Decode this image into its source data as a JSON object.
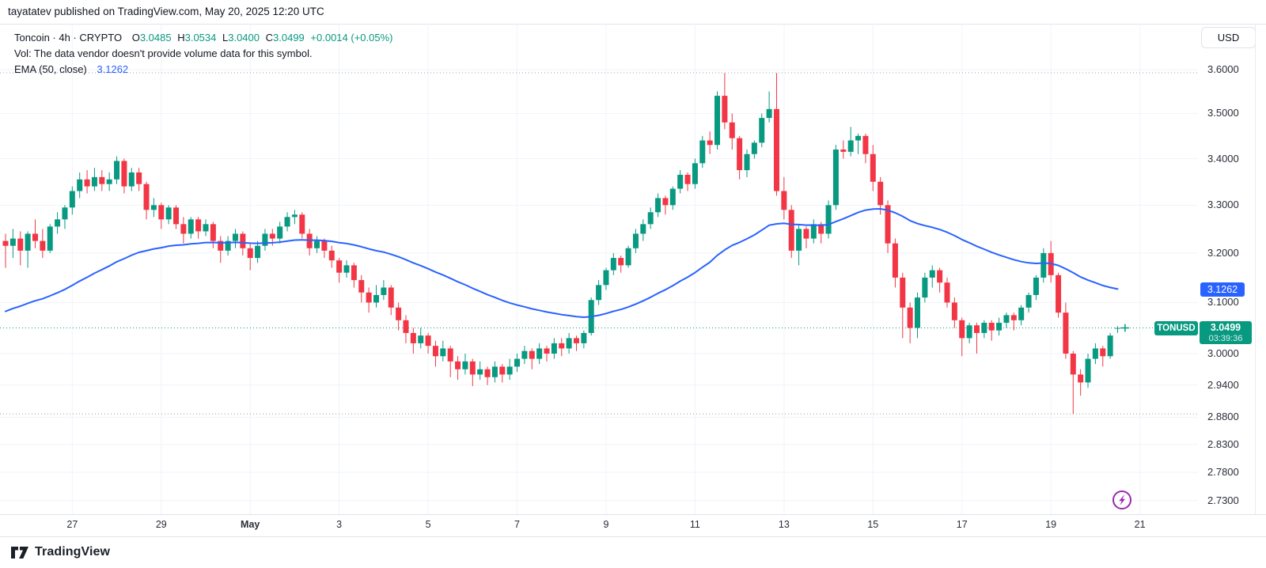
{
  "attribution": "tayatatev published on TradingView.com, May 20, 2025 12:20 UTC",
  "legend": {
    "title": "Toncoin · 4h · CRYPTO",
    "o_label": "O",
    "o_value": "3.0485",
    "h_label": "H",
    "h_value": "3.0534",
    "l_label": "L",
    "l_value": "3.0400",
    "c_label": "C",
    "c_value": "3.0499",
    "change": "+0.0014 (+0.05%)",
    "vol_message": "Vol: The data vendor doesn't provide volume data for this symbol.",
    "ema_label": "EMA (50, close)",
    "ema_value": "3.1262"
  },
  "axis_right": {
    "currency_button": "USD",
    "labels": [
      {
        "text": "3.6000",
        "price": 3.6
      },
      {
        "text": "3.5000",
        "price": 3.5
      },
      {
        "text": "3.4000",
        "price": 3.4
      },
      {
        "text": "3.3000",
        "price": 3.3
      },
      {
        "text": "3.2000",
        "price": 3.2
      },
      {
        "text": "3.1000",
        "price": 3.1
      },
      {
        "text": "3.0000",
        "price": 3.0
      },
      {
        "text": "2.9400",
        "price": 2.94
      },
      {
        "text": "2.8800",
        "price": 2.88
      },
      {
        "text": "2.8300",
        "price": 2.83
      },
      {
        "text": "2.7800",
        "price": 2.78
      },
      {
        "text": "2.7300",
        "price": 2.73
      }
    ],
    "ema_badge": "3.1262",
    "symbol_tag": "TONUSD",
    "price_badge": "3.0499",
    "countdown": "03:39:36"
  },
  "footer": {
    "logo_text": "TradingView"
  },
  "colors": {
    "up": "#089981",
    "down": "#F23645",
    "ema": "#2962FF",
    "grid": "#f0f3fa",
    "range_dotted": "#9b9ea7",
    "text": "#131722"
  },
  "chart_data": {
    "type": "candlestick",
    "symbol": "TONUSD",
    "title": "Toncoin",
    "interval": "4h",
    "exchange": "CRYPTO",
    "scale": "log",
    "ema_period": 50,
    "ema_seed": 3.077,
    "ema_value": 3.1262,
    "last_price": 3.0499,
    "range_high": 3.5926,
    "range_low": 2.886,
    "price_axis": [
      3.6,
      3.5,
      3.4,
      3.3,
      3.2,
      3.1,
      3.0,
      2.94,
      2.88,
      2.83,
      2.78,
      2.73
    ],
    "time_ticks": [
      {
        "i": 9,
        "label": "27"
      },
      {
        "i": 21,
        "label": "29"
      },
      {
        "i": 33,
        "label": "May",
        "bold": true
      },
      {
        "i": 45,
        "label": "3"
      },
      {
        "i": 57,
        "label": "5"
      },
      {
        "i": 69,
        "label": "7"
      },
      {
        "i": 81,
        "label": "9"
      },
      {
        "i": 93,
        "label": "11"
      },
      {
        "i": 105,
        "label": "13"
      },
      {
        "i": 117,
        "label": "15"
      },
      {
        "i": 129,
        "label": "17"
      },
      {
        "i": 141,
        "label": "19"
      },
      {
        "i": 153,
        "label": "21"
      }
    ],
    "candles": [
      [
        3.225,
        3.24,
        3.17,
        3.215
      ],
      [
        3.215,
        3.25,
        3.19,
        3.23
      ],
      [
        3.23,
        3.245,
        3.175,
        3.205
      ],
      [
        3.205,
        3.245,
        3.17,
        3.24
      ],
      [
        3.24,
        3.27,
        3.21,
        3.225
      ],
      [
        3.225,
        3.25,
        3.19,
        3.205
      ],
      [
        3.205,
        3.26,
        3.2,
        3.255
      ],
      [
        3.255,
        3.285,
        3.24,
        3.27
      ],
      [
        3.27,
        3.3,
        3.25,
        3.295
      ],
      [
        3.295,
        3.34,
        3.28,
        3.33
      ],
      [
        3.33,
        3.37,
        3.315,
        3.355
      ],
      [
        3.355,
        3.375,
        3.325,
        3.34
      ],
      [
        3.34,
        3.38,
        3.33,
        3.36
      ],
      [
        3.36,
        3.375,
        3.33,
        3.345
      ],
      [
        3.345,
        3.37,
        3.33,
        3.355
      ],
      [
        3.355,
        3.405,
        3.345,
        3.395
      ],
      [
        3.395,
        3.4,
        3.325,
        3.34
      ],
      [
        3.34,
        3.38,
        3.33,
        3.37
      ],
      [
        3.37,
        3.38,
        3.33,
        3.345
      ],
      [
        3.345,
        3.35,
        3.27,
        3.29
      ],
      [
        3.29,
        3.315,
        3.275,
        3.3
      ],
      [
        3.3,
        3.305,
        3.25,
        3.27
      ],
      [
        3.27,
        3.3,
        3.26,
        3.295
      ],
      [
        3.295,
        3.3,
        3.25,
        3.26
      ],
      [
        3.26,
        3.275,
        3.22,
        3.24
      ],
      [
        3.24,
        3.275,
        3.23,
        3.27
      ],
      [
        3.27,
        3.275,
        3.23,
        3.245
      ],
      [
        3.245,
        3.27,
        3.235,
        3.26
      ],
      [
        3.26,
        3.265,
        3.21,
        3.225
      ],
      [
        3.225,
        3.235,
        3.18,
        3.205
      ],
      [
        3.205,
        3.235,
        3.195,
        3.225
      ],
      [
        3.225,
        3.25,
        3.21,
        3.24
      ],
      [
        3.24,
        3.245,
        3.195,
        3.21
      ],
      [
        3.21,
        3.22,
        3.165,
        3.19
      ],
      [
        3.19,
        3.225,
        3.18,
        3.215
      ],
      [
        3.215,
        3.25,
        3.205,
        3.24
      ],
      [
        3.24,
        3.25,
        3.215,
        3.23
      ],
      [
        3.23,
        3.265,
        3.22,
        3.255
      ],
      [
        3.255,
        3.285,
        3.245,
        3.275
      ],
      [
        3.275,
        3.29,
        3.26,
        3.28
      ],
      [
        3.28,
        3.285,
        3.23,
        3.24
      ],
      [
        3.24,
        3.25,
        3.195,
        3.21
      ],
      [
        3.21,
        3.235,
        3.2,
        3.225
      ],
      [
        3.225,
        3.23,
        3.19,
        3.205
      ],
      [
        3.205,
        3.215,
        3.17,
        3.185
      ],
      [
        3.185,
        3.19,
        3.14,
        3.16
      ],
      [
        3.16,
        3.185,
        3.15,
        3.175
      ],
      [
        3.175,
        3.18,
        3.13,
        3.145
      ],
      [
        3.145,
        3.155,
        3.1,
        3.12
      ],
      [
        3.12,
        3.13,
        3.08,
        3.1
      ],
      [
        3.1,
        3.135,
        3.09,
        3.115
      ],
      [
        3.115,
        3.145,
        3.105,
        3.13
      ],
      [
        3.13,
        3.135,
        3.075,
        3.09
      ],
      [
        3.09,
        3.1,
        3.045,
        3.065
      ],
      [
        3.065,
        3.075,
        3.02,
        3.04
      ],
      [
        3.04,
        3.05,
        3.0,
        3.02
      ],
      [
        3.02,
        3.05,
        3.01,
        3.035
      ],
      [
        3.035,
        3.04,
        3.0,
        3.015
      ],
      [
        3.015,
        3.025,
        2.975,
        2.995
      ],
      [
        2.995,
        3.025,
        2.985,
        3.01
      ],
      [
        3.01,
        3.015,
        2.955,
        2.985
      ],
      [
        2.985,
        2.995,
        2.95,
        2.97
      ],
      [
        2.97,
        3.0,
        2.96,
        2.985
      ],
      [
        2.985,
        2.99,
        2.938,
        2.96
      ],
      [
        2.96,
        2.985,
        2.95,
        2.97
      ],
      [
        2.97,
        2.975,
        2.94,
        2.955
      ],
      [
        2.955,
        2.985,
        2.945,
        2.975
      ],
      [
        2.975,
        2.98,
        2.945,
        2.96
      ],
      [
        2.96,
        2.99,
        2.95,
        2.975
      ],
      [
        2.975,
        3.0,
        2.965,
        2.99
      ],
      [
        2.99,
        3.015,
        2.98,
        3.005
      ],
      [
        3.005,
        3.01,
        2.97,
        2.99
      ],
      [
        2.99,
        3.02,
        2.98,
        3.01
      ],
      [
        3.01,
        3.015,
        2.985,
        3.0
      ],
      [
        3.0,
        3.03,
        2.99,
        3.02
      ],
      [
        3.02,
        3.03,
        2.995,
        3.01
      ],
      [
        3.01,
        3.04,
        3.0,
        3.03
      ],
      [
        3.03,
        3.035,
        3.005,
        3.02
      ],
      [
        3.02,
        3.045,
        3.01,
        3.04
      ],
      [
        3.04,
        3.11,
        3.035,
        3.105
      ],
      [
        3.105,
        3.145,
        3.095,
        3.135
      ],
      [
        3.135,
        3.17,
        3.125,
        3.165
      ],
      [
        3.165,
        3.2,
        3.155,
        3.19
      ],
      [
        3.19,
        3.195,
        3.16,
        3.175
      ],
      [
        3.175,
        3.215,
        3.17,
        3.21
      ],
      [
        3.21,
        3.25,
        3.2,
        3.24
      ],
      [
        3.24,
        3.27,
        3.225,
        3.26
      ],
      [
        3.26,
        3.295,
        3.25,
        3.285
      ],
      [
        3.285,
        3.325,
        3.275,
        3.315
      ],
      [
        3.315,
        3.32,
        3.28,
        3.3
      ],
      [
        3.3,
        3.34,
        3.29,
        3.335
      ],
      [
        3.335,
        3.375,
        3.325,
        3.365
      ],
      [
        3.365,
        3.37,
        3.33,
        3.345
      ],
      [
        3.345,
        3.4,
        3.335,
        3.39
      ],
      [
        3.39,
        3.45,
        3.38,
        3.44
      ],
      [
        3.44,
        3.46,
        3.41,
        3.43
      ],
      [
        3.43,
        3.55,
        3.42,
        3.54
      ],
      [
        3.54,
        3.592,
        3.465,
        3.48
      ],
      [
        3.48,
        3.5,
        3.42,
        3.445
      ],
      [
        3.445,
        3.45,
        3.355,
        3.375
      ],
      [
        3.375,
        3.42,
        3.36,
        3.41
      ],
      [
        3.41,
        3.44,
        3.4,
        3.435
      ],
      [
        3.435,
        3.5,
        3.425,
        3.49
      ],
      [
        3.49,
        3.55,
        3.48,
        3.51
      ],
      [
        3.51,
        3.592,
        3.32,
        3.33
      ],
      [
        3.33,
        3.36,
        3.27,
        3.29
      ],
      [
        3.29,
        3.3,
        3.19,
        3.205
      ],
      [
        3.205,
        3.26,
        3.175,
        3.25
      ],
      [
        3.25,
        3.255,
        3.21,
        3.23
      ],
      [
        3.23,
        3.27,
        3.22,
        3.26
      ],
      [
        3.26,
        3.265,
        3.22,
        3.24
      ],
      [
        3.24,
        3.31,
        3.23,
        3.3
      ],
      [
        3.3,
        3.43,
        3.29,
        3.42
      ],
      [
        3.42,
        3.44,
        3.4,
        3.415
      ],
      [
        3.415,
        3.47,
        3.405,
        3.44
      ],
      [
        3.44,
        3.455,
        3.41,
        3.45
      ],
      [
        3.45,
        3.455,
        3.39,
        3.41
      ],
      [
        3.41,
        3.43,
        3.33,
        3.35
      ],
      [
        3.35,
        3.36,
        3.28,
        3.3
      ],
      [
        3.3,
        3.31,
        3.2,
        3.22
      ],
      [
        3.22,
        3.23,
        3.13,
        3.15
      ],
      [
        3.15,
        3.16,
        3.03,
        3.09
      ],
      [
        3.09,
        3.1,
        3.02,
        3.05
      ],
      [
        3.05,
        3.12,
        3.03,
        3.11
      ],
      [
        3.11,
        3.16,
        3.1,
        3.15
      ],
      [
        3.15,
        3.175,
        3.13,
        3.165
      ],
      [
        3.165,
        3.17,
        3.12,
        3.14
      ],
      [
        3.14,
        3.15,
        3.09,
        3.1
      ],
      [
        3.1,
        3.11,
        3.05,
        3.065
      ],
      [
        3.065,
        3.07,
        2.995,
        3.03
      ],
      [
        3.03,
        3.06,
        3.02,
        3.055
      ],
      [
        3.055,
        3.06,
        3.0,
        3.04
      ],
      [
        3.04,
        3.065,
        3.03,
        3.06
      ],
      [
        3.06,
        3.065,
        3.025,
        3.045
      ],
      [
        3.045,
        3.07,
        3.035,
        3.06
      ],
      [
        3.06,
        3.08,
        3.05,
        3.075
      ],
      [
        3.075,
        3.08,
        3.045,
        3.065
      ],
      [
        3.065,
        3.095,
        3.055,
        3.09
      ],
      [
        3.09,
        3.12,
        3.08,
        3.115
      ],
      [
        3.115,
        3.155,
        3.105,
        3.15
      ],
      [
        3.15,
        3.21,
        3.14,
        3.2
      ],
      [
        3.2,
        3.225,
        3.14,
        3.155
      ],
      [
        3.155,
        3.16,
        3.07,
        3.08
      ],
      [
        3.08,
        3.1,
        2.99,
        3.0
      ],
      [
        3.0,
        3.005,
        2.886,
        2.96
      ],
      [
        2.96,
        2.97,
        2.92,
        2.945
      ],
      [
        2.945,
        3.0,
        2.935,
        2.99
      ],
      [
        2.99,
        3.02,
        2.98,
        3.01
      ],
      [
        3.01,
        3.015,
        2.975,
        2.995
      ],
      [
        2.995,
        3.04,
        2.99,
        3.035
      ],
      [
        3.0485,
        3.0534,
        3.04,
        3.0499
      ]
    ]
  }
}
